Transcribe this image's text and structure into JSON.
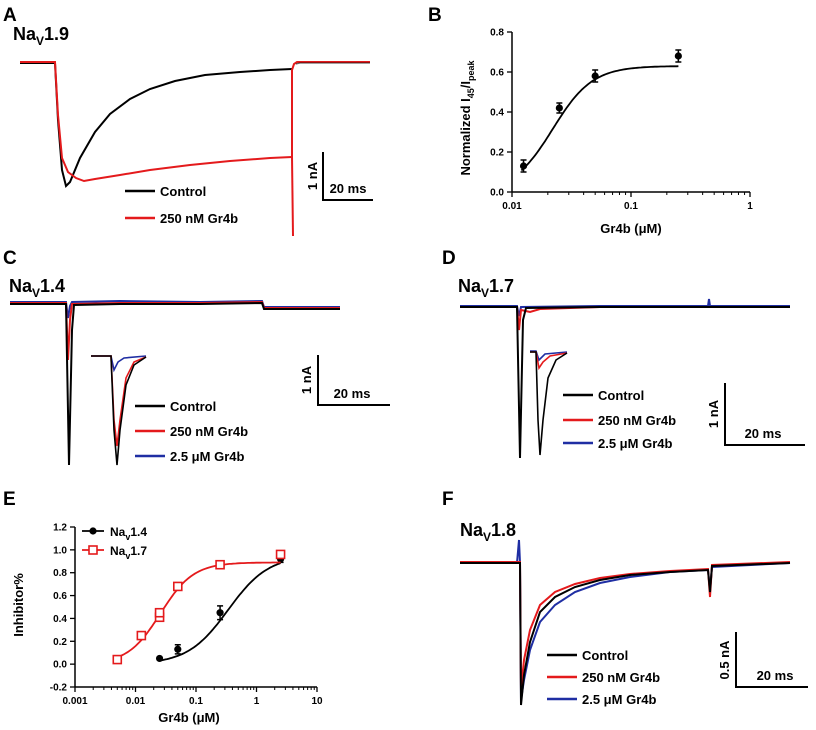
{
  "colors": {
    "control": "#000000",
    "gr4b_250": "#e41a1c",
    "gr4b_2500": "#1f2ea3",
    "nav17": "#e41a1c",
    "nav14": "#000000"
  },
  "panels": {
    "A": {
      "letter": "A",
      "channel": "Na",
      "channel_sub": "V",
      "channel_suffix": "1.9",
      "legend": [
        "Control",
        "250 nM Gr4b"
      ],
      "scale_y": "1 nA",
      "scale_x": "20 ms"
    },
    "C": {
      "letter": "C",
      "channel": "Na",
      "channel_sub": "V",
      "channel_suffix": "1.4",
      "legend": [
        "Control",
        "250 nM Gr4b",
        "2.5 μM Gr4b"
      ],
      "scale_y": "1 nA",
      "scale_x": "20 ms"
    },
    "D": {
      "letter": "D",
      "channel": "Na",
      "channel_sub": "V",
      "channel_suffix": "1.7",
      "legend": [
        "Control",
        "250 nM Gr4b",
        "2.5 μM Gr4b"
      ],
      "scale_y": "1 nA",
      "scale_x": "20 ms"
    },
    "F": {
      "letter": "F",
      "channel": "Na",
      "channel_sub": "V",
      "channel_suffix": "1.8",
      "legend": [
        "Control",
        "250 nM Gr4b",
        "2.5 μM Gr4b"
      ],
      "scale_y": "0.5 nA",
      "scale_x": "20 ms"
    }
  },
  "chart_data": [
    {
      "panel": "B",
      "letter": "B",
      "type": "scatter",
      "title": "",
      "xlabel": "Gr4b (μM)",
      "ylabel_main": "Normalized I",
      "ylabel_sub1": "45",
      "ylabel_mid": "/I",
      "ylabel_sub2": "peak",
      "xscale": "log",
      "xlim": [
        0.01,
        1
      ],
      "ylim": [
        0,
        0.8
      ],
      "xticks": [
        0.01,
        0.1,
        1
      ],
      "xtick_labels": [
        "0.01",
        "0.1",
        "1"
      ],
      "yticks": [
        0,
        0.2,
        0.4,
        0.6,
        0.8
      ],
      "ytick_labels": [
        "0.0",
        "0.2",
        "0.4",
        "0.6",
        "0.8"
      ],
      "series": [
        {
          "name": "Nav1.9",
          "x": [
            0.0125,
            0.025,
            0.05,
            0.25
          ],
          "y": [
            0.13,
            0.42,
            0.58,
            0.68
          ],
          "err": [
            0.03,
            0.025,
            0.03,
            0.03
          ]
        }
      ],
      "fit": {
        "bottom": 0.0,
        "top": 0.63,
        "ec50": 0.022,
        "hill": 2.6
      }
    },
    {
      "panel": "E",
      "letter": "E",
      "type": "scatter",
      "xlabel": "Gr4b (μM)",
      "ylabel": "Inhibitor%",
      "xscale": "log",
      "xlim": [
        0.001,
        10
      ],
      "ylim": [
        -0.2,
        1.2
      ],
      "xticks": [
        0.001,
        0.01,
        0.1,
        1,
        10
      ],
      "xtick_labels": [
        "0.001",
        "0.01",
        "0.1",
        "1",
        "10"
      ],
      "yticks": [
        -0.2,
        0.0,
        0.2,
        0.4,
        0.6,
        0.8,
        1.0,
        1.2
      ],
      "ytick_labels": [
        "-0.2",
        "0.0",
        "0.2",
        "0.4",
        "0.6",
        "0.8",
        "1.0",
        "1.2"
      ],
      "series": [
        {
          "name": "Nav1.4",
          "name_main": "Na",
          "name_sub": "v",
          "name_suffix": "1.4",
          "marker": "filled-circle",
          "color": "#000000",
          "x": [
            0.025,
            0.05,
            0.25,
            2.5
          ],
          "y": [
            0.05,
            0.13,
            0.45,
            0.92
          ],
          "err": [
            0.0,
            0.04,
            0.06,
            0.03
          ],
          "fit": {
            "bottom": 0.0,
            "top": 0.95,
            "ec50": 0.34,
            "hill": 1.3
          }
        },
        {
          "name": "Nav1.7",
          "name_main": "Na",
          "name_sub": "v",
          "name_suffix": "1.7",
          "marker": "open-square",
          "color": "#e41a1c",
          "x": [
            0.005,
            0.0125,
            0.025,
            0.025,
            0.05,
            0.25,
            2.5
          ],
          "y": [
            0.04,
            0.25,
            0.41,
            0.45,
            0.68,
            0.87,
            0.96
          ],
          "err": [
            0,
            0,
            0.02,
            0.02,
            0,
            0,
            0
          ],
          "fit": {
            "bottom": 0.0,
            "top": 0.89,
            "ec50": 0.026,
            "hill": 1.6
          }
        }
      ]
    }
  ]
}
